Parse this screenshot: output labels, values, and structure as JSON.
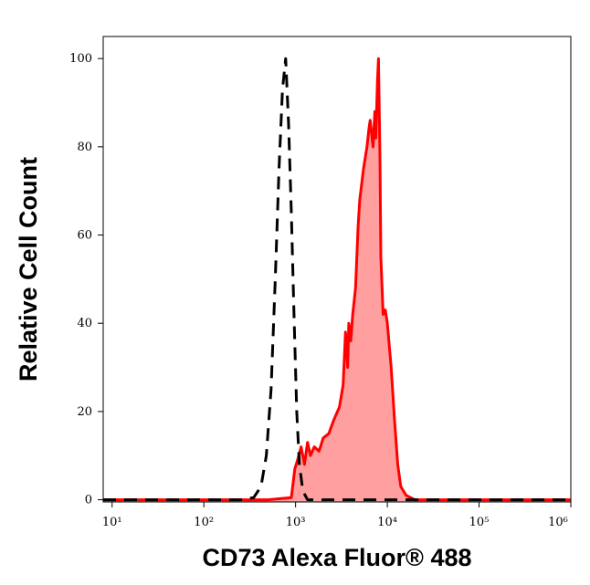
{
  "chart_data": {
    "type": "line",
    "xlabel": "CD73 Alexa Fluor® 488",
    "ylabel": "Relative Cell Count",
    "xscale": "log",
    "xlim": [
      8,
      1000000
    ],
    "ylim": [
      -0.5,
      105
    ],
    "xticks": [
      {
        "value": 10,
        "label": "10¹"
      },
      {
        "value": 100,
        "label": "10²"
      },
      {
        "value": 1000,
        "label": "10³"
      },
      {
        "value": 10000,
        "label": "10⁴"
      },
      {
        "value": 100000,
        "label": "10⁵"
      },
      {
        "value": 1000000,
        "label": "10⁶"
      }
    ],
    "yticks": [
      0,
      20,
      40,
      60,
      80,
      100
    ],
    "series": [
      {
        "color": "#ff0000",
        "fill_color": "#ff9f9f",
        "line_style": "solid",
        "x": [
          8,
          100,
          500,
          900,
          980,
          1050,
          1150,
          1250,
          1350,
          1450,
          1600,
          1800,
          2000,
          2300,
          2600,
          3000,
          3300,
          3500,
          3700,
          3800,
          4000,
          4200,
          4500,
          4800,
          5000,
          5500,
          6000,
          6300,
          6500,
          7000,
          7300,
          7500,
          7800,
          8000,
          8300,
          8500,
          9000,
          9500,
          10000,
          11000,
          12000,
          13000,
          14000,
          16000,
          20000,
          100000,
          1000000
        ],
        "values": [
          0,
          0,
          0,
          0.5,
          7,
          9,
          12,
          8,
          13,
          10,
          12,
          11,
          14,
          15,
          18,
          21,
          26,
          38,
          30,
          40,
          36,
          42,
          48,
          62,
          68,
          75,
          80,
          84,
          86,
          80,
          88,
          82,
          95,
          100,
          78,
          55,
          42,
          43,
          40,
          30,
          18,
          8,
          3,
          1,
          0,
          0,
          0
        ]
      },
      {
        "color": "#000000",
        "line_style": "dashed",
        "x": [
          8,
          100,
          250,
          350,
          420,
          480,
          540,
          600,
          660,
          720,
          780,
          840,
          900,
          960,
          1030,
          1100,
          1200,
          1350,
          1500,
          10000,
          1000000
        ],
        "values": [
          0,
          0,
          0,
          0.5,
          3,
          10,
          25,
          50,
          75,
          93,
          100,
          85,
          65,
          42,
          20,
          8,
          2,
          0,
          0,
          0,
          0
        ]
      }
    ]
  }
}
